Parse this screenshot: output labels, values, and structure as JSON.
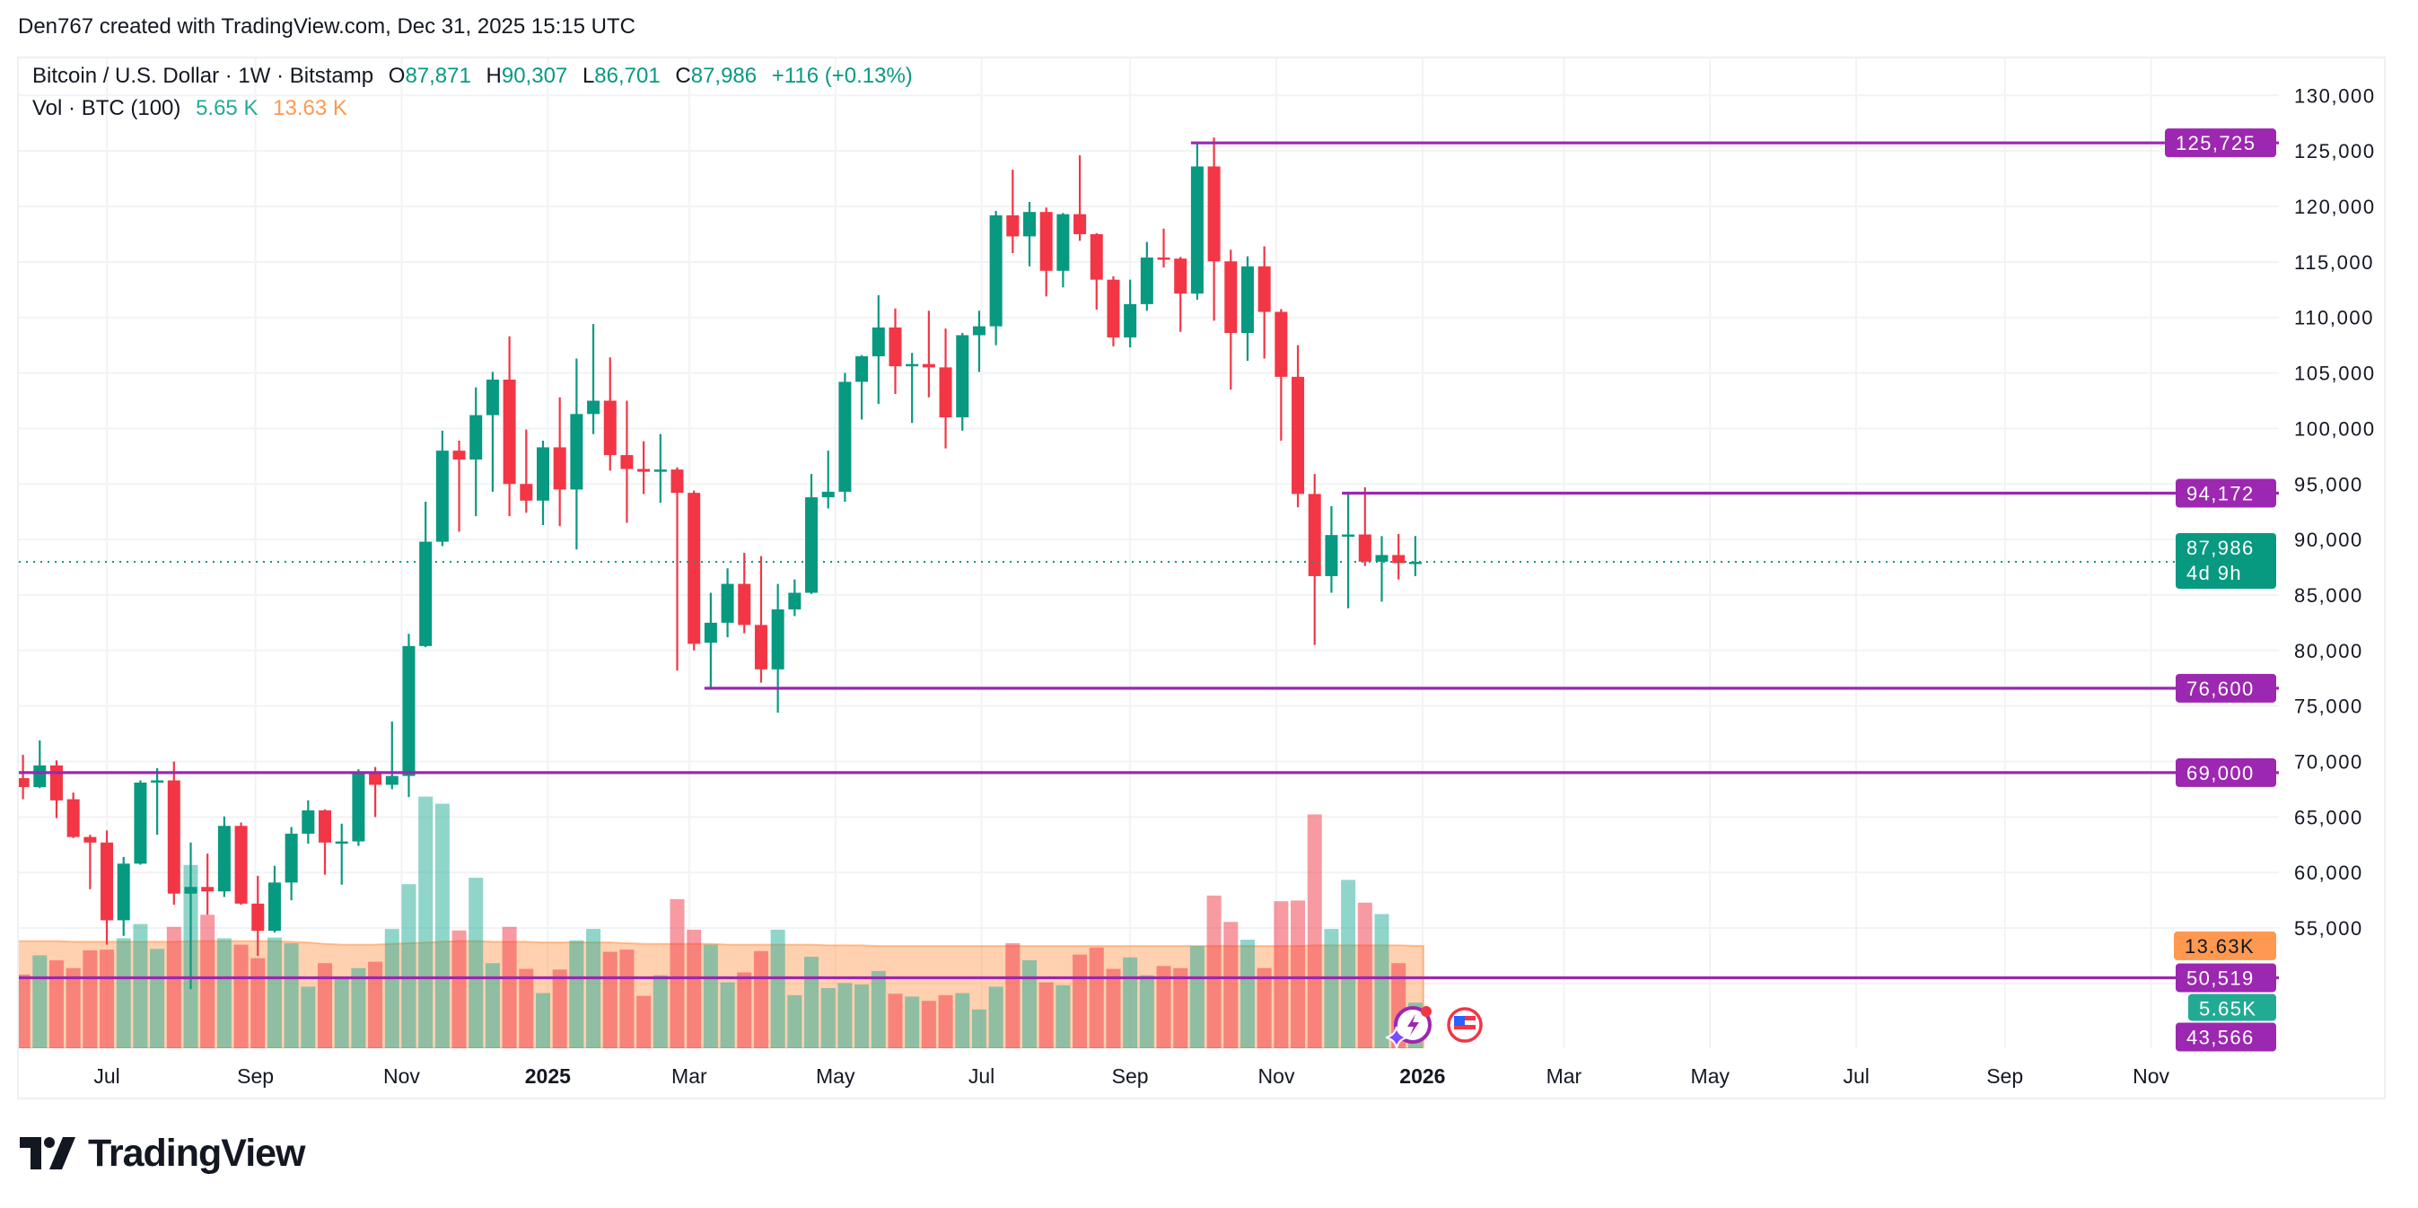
{
  "attribution": "Den767 created with TradingView.com, Dec 31, 2025 15:15 UTC",
  "legend": {
    "symbol": "Bitcoin / U.S. Dollar · 1W · Bitstamp",
    "o_label": "O",
    "open": "87,871",
    "h_label": "H",
    "high": "90,307",
    "l_label": "L",
    "low": "86,701",
    "c_label": "C",
    "close": "87,986",
    "change": "+116 (+0.13%)",
    "vol_title": "Vol · BTC (100)",
    "vol_value": "5.65 K",
    "vol_ma_value": "13.63 K"
  },
  "colors": {
    "up": "#089981",
    "down": "#f23645",
    "vol_up": "#22ab94",
    "vol_down": "#f23645",
    "vol_ma": "#ff9850",
    "level_line": "#9c27b0",
    "grid": "#f2f3f6",
    "text": "#131722"
  },
  "price_axis": {
    "ticks": [
      55000,
      60000,
      65000,
      70000,
      75000,
      80000,
      85000,
      90000,
      95000,
      100000,
      105000,
      110000,
      115000,
      120000,
      125000,
      130000
    ]
  },
  "time_axis": {
    "ticks": [
      {
        "label": "Jul",
        "date": "2024-07-01",
        "bold": false
      },
      {
        "label": "Sep",
        "date": "2024-09-01",
        "bold": false
      },
      {
        "label": "Nov",
        "date": "2024-11-01",
        "bold": false
      },
      {
        "label": "2025",
        "date": "2025-01-01",
        "bold": true
      },
      {
        "label": "Mar",
        "date": "2025-03-01",
        "bold": false
      },
      {
        "label": "May",
        "date": "2025-05-01",
        "bold": false
      },
      {
        "label": "Jul",
        "date": "2025-07-01",
        "bold": false
      },
      {
        "label": "Sep",
        "date": "2025-09-01",
        "bold": false
      },
      {
        "label": "Nov",
        "date": "2025-11-01",
        "bold": false
      },
      {
        "label": "2026",
        "date": "2026-01-01",
        "bold": true
      },
      {
        "label": "Mar",
        "date": "2026-03-01",
        "bold": false
      },
      {
        "label": "May",
        "date": "2026-05-01",
        "bold": false
      },
      {
        "label": "Jul",
        "date": "2026-07-01",
        "bold": false
      },
      {
        "label": "Sep",
        "date": "2026-09-01",
        "bold": false
      },
      {
        "label": "Nov",
        "date": "2026-11-01",
        "bold": false
      }
    ]
  },
  "levels": [
    {
      "label": "125,725",
      "value": 125725,
      "start": "2025-09-29"
    },
    {
      "label": "94,172",
      "value": 94172,
      "start": "2025-12-01"
    },
    {
      "label": "76,600",
      "value": 76600,
      "start": "2025-03-10"
    },
    {
      "label": "69,000",
      "value": 69000,
      "start": null
    },
    {
      "label": "50,519",
      "value": 50519,
      "start": null
    },
    {
      "label": "43,566",
      "value": 43566,
      "start": null
    }
  ],
  "current_price": {
    "label": "87,986",
    "countdown": "4d 9h",
    "value": 87986
  },
  "volume_labels": {
    "ma_label": "13.63K",
    "ma_value": 13.63,
    "vol_label": "5.65K",
    "vol_value": 5.65
  },
  "icons": [
    "assistant-lightning-icon",
    "us-flag-icon"
  ],
  "logo": "TradingView",
  "chart_data": {
    "type": "candlestick",
    "symbol": "Bitcoin / U.S. Dollar",
    "interval": "1W",
    "start": "2024-05-27",
    "candles_ohlc": [
      [
        68500,
        70600,
        66600,
        67700
      ],
      [
        67700,
        71900,
        67600,
        69650
      ],
      [
        69650,
        70100,
        64900,
        66500
      ],
      [
        66600,
        67200,
        63100,
        63200
      ],
      [
        63200,
        63400,
        58500,
        62700
      ],
      [
        62700,
        63800,
        53500,
        55700
      ],
      [
        55700,
        61400,
        54300,
        60800
      ],
      [
        60800,
        68300,
        60700,
        68100
      ],
      [
        68200,
        69400,
        63400,
        68300
      ],
      [
        68300,
        70000,
        57100,
        58100
      ],
      [
        58100,
        62700,
        49500,
        58700
      ],
      [
        58700,
        61700,
        56200,
        58300
      ],
      [
        58300,
        65050,
        57800,
        64200
      ],
      [
        64200,
        64500,
        57100,
        57200
      ],
      [
        57200,
        59700,
        52500,
        54750
      ],
      [
        54750,
        60600,
        54600,
        59100
      ],
      [
        59100,
        64100,
        57500,
        63500
      ],
      [
        63500,
        66500,
        62600,
        65600
      ],
      [
        65600,
        65700,
        59800,
        62700
      ],
      [
        62700,
        64400,
        58900,
        62800
      ],
      [
        62800,
        69300,
        62400,
        69000
      ],
      [
        69000,
        69500,
        65000,
        67900
      ],
      [
        67900,
        73600,
        67500,
        68700
      ],
      [
        68700,
        81500,
        66800,
        80400
      ],
      [
        80400,
        93400,
        80300,
        89800
      ],
      [
        89800,
        99800,
        89400,
        98000
      ],
      [
        98000,
        98900,
        90700,
        97200
      ],
      [
        97200,
        103700,
        92100,
        101200
      ],
      [
        101200,
        105100,
        94300,
        104400
      ],
      [
        104400,
        108300,
        92100,
        95000
      ],
      [
        95000,
        99900,
        92400,
        93500
      ],
      [
        93500,
        98900,
        91300,
        98300
      ],
      [
        98300,
        102800,
        91200,
        94500
      ],
      [
        94500,
        106300,
        89100,
        101300
      ],
      [
        101300,
        109400,
        99500,
        102500
      ],
      [
        102500,
        106400,
        96200,
        97600
      ],
      [
        97600,
        102500,
        91500,
        96350
      ],
      [
        96350,
        98850,
        94100,
        96100
      ],
      [
        96100,
        99500,
        93300,
        96300
      ],
      [
        96300,
        96500,
        78200,
        94200
      ],
      [
        94200,
        94400,
        80000,
        80600
      ],
      [
        80700,
        85200,
        76600,
        82500
      ],
      [
        82500,
        87400,
        81200,
        86000
      ],
      [
        86000,
        88800,
        81550,
        82300
      ],
      [
        82300,
        88500,
        77100,
        78300
      ],
      [
        78300,
        86000,
        74400,
        83700
      ],
      [
        83700,
        86400,
        83100,
        85200
      ],
      [
        85200,
        95900,
        85100,
        93800
      ],
      [
        93800,
        98000,
        92800,
        94300
      ],
      [
        94300,
        105000,
        93400,
        104200
      ],
      [
        104200,
        106600,
        100800,
        106500
      ],
      [
        106500,
        112000,
        102200,
        109100
      ],
      [
        109100,
        110800,
        103100,
        105600
      ],
      [
        105600,
        106800,
        100500,
        105800
      ],
      [
        105800,
        110600,
        102800,
        105500
      ],
      [
        105500,
        109000,
        98200,
        101000
      ],
      [
        101000,
        108600,
        99800,
        108400
      ],
      [
        108400,
        110600,
        105100,
        109200
      ],
      [
        109200,
        119600,
        107500,
        119200
      ],
      [
        119200,
        123300,
        115800,
        117300
      ],
      [
        117300,
        120400,
        114600,
        119500
      ],
      [
        119500,
        119900,
        111900,
        114200
      ],
      [
        114200,
        119400,
        112700,
        119300
      ],
      [
        119300,
        124600,
        116900,
        117500
      ],
      [
        117500,
        117600,
        110700,
        113400
      ],
      [
        113400,
        113700,
        107400,
        108200
      ],
      [
        108200,
        113400,
        107300,
        111200
      ],
      [
        111200,
        116800,
        110600,
        115400
      ],
      [
        115400,
        118000,
        114500,
        115300
      ],
      [
        115300,
        115450,
        108700,
        112150
      ],
      [
        112150,
        125725,
        111600,
        123600
      ],
      [
        123600,
        126200,
        109700,
        115050
      ],
      [
        115050,
        116100,
        103500,
        108600
      ],
      [
        108600,
        115500,
        106100,
        114600
      ],
      [
        114600,
        116400,
        106300,
        110500
      ],
      [
        110500,
        110750,
        98900,
        104650
      ],
      [
        104650,
        107500,
        92900,
        94100
      ],
      [
        94100,
        95900,
        80500,
        86700
      ],
      [
        86700,
        93000,
        85200,
        90400
      ],
      [
        90400,
        94172,
        83800,
        90450
      ],
      [
        90450,
        94700,
        87600,
        88000
      ],
      [
        88000,
        90300,
        84400,
        88600
      ],
      [
        88600,
        90500,
        86400,
        87871
      ],
      [
        87871,
        90307,
        86701,
        87986
      ]
    ],
    "volume_k": [
      9.6,
      12.3,
      11.6,
      10.5,
      13.0,
      13.1,
      14.7,
      16.7,
      13.2,
      16.3,
      25.0,
      18.0,
      14.7,
      13.8,
      11.9,
      14.8,
      14.0,
      7.9,
      11.2,
      9.1,
      10.5,
      11.4,
      16.0,
      22.3,
      34.6,
      33.6,
      15.8,
      23.2,
      11.2,
      16.3,
      10.4,
      7.0,
      10.3,
      14.4,
      16.0,
      12.8,
      13.1,
      6.6,
      9.5,
      20.2,
      15.9,
      13.8,
      8.5,
      9.9,
      12.9,
      15.9,
      6.7,
      12.1,
      7.7,
      8.4,
      8.2,
      10.1,
      6.9,
      6.5,
      5.9,
      6.7,
      7.0,
      4.7,
      7.9,
      14.0,
      11.6,
      8.5,
      8.1,
      12.4,
      13.4,
      10.4,
      12.0,
      9.5,
      10.8,
      10.5,
      13.6,
      20.7,
      17.0,
      14.5,
      10.5,
      19.9,
      20.0,
      32.1,
      16.0,
      22.9,
      19.7,
      18.1,
      11.2,
      5.65
    ],
    "volume_ma_k": [
      14.3,
      14.3,
      14.3,
      14.2,
      14.2,
      14.2,
      14.2,
      14.2,
      14.2,
      14.2,
      14.3,
      14.3,
      14.3,
      14.3,
      14.3,
      14.3,
      14.2,
      14.1,
      13.9,
      13.8,
      13.8,
      13.8,
      13.9,
      14.0,
      14.1,
      14.2,
      14.3,
      14.3,
      14.2,
      14.2,
      14.2,
      14.1,
      14.1,
      14.1,
      14.1,
      14.1,
      14.0,
      13.9,
      13.9,
      13.9,
      13.9,
      13.9,
      13.8,
      13.8,
      13.8,
      13.8,
      13.8,
      13.8,
      13.7,
      13.7,
      13.7,
      13.6,
      13.6,
      13.6,
      13.6,
      13.6,
      13.6,
      13.6,
      13.6,
      13.6,
      13.6,
      13.6,
      13.6,
      13.6,
      13.6,
      13.6,
      13.6,
      13.6,
      13.6,
      13.6,
      13.6,
      13.6,
      13.6,
      13.6,
      13.6,
      13.6,
      13.6,
      13.7,
      13.7,
      13.7,
      13.7,
      13.7,
      13.7,
      13.63
    ],
    "volume_ma_length": 100,
    "ylim": [
      43000,
      131000
    ],
    "grid": true
  }
}
